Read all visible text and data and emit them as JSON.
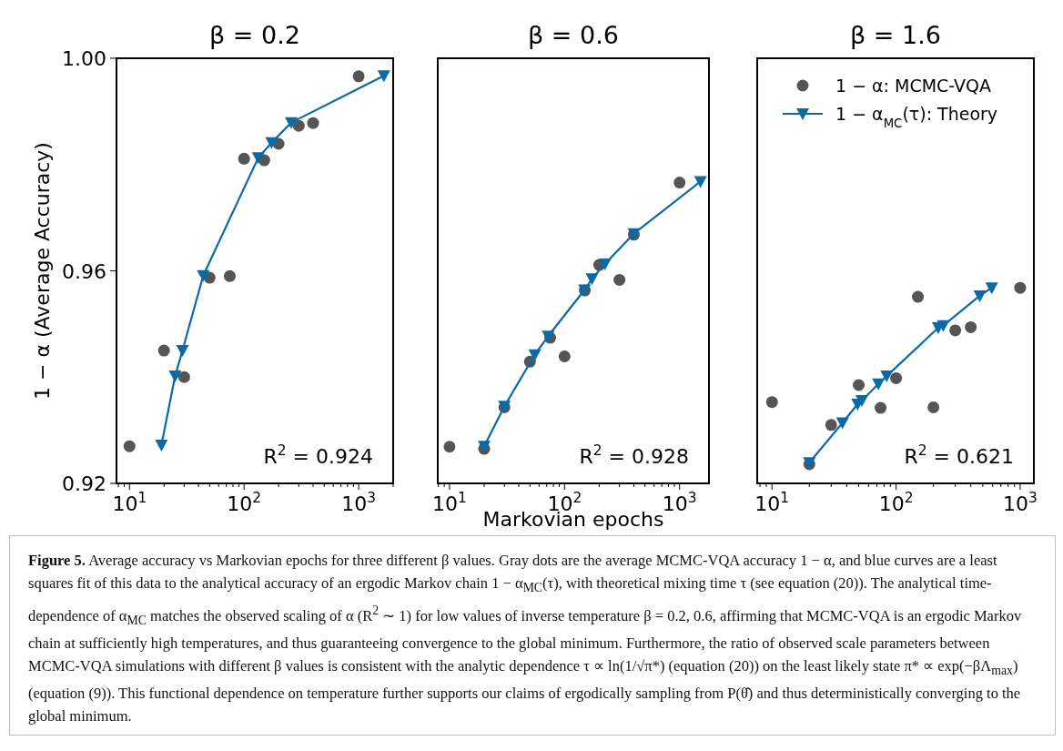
{
  "chart_data": [
    {
      "type": "scatter",
      "title": "β = 0.2",
      "ylabel": "1 − α  (Average Accuracy)",
      "log": "x",
      "xlim": [
        7.7,
        2000
      ],
      "ylim": [
        0.92,
        1.0
      ],
      "xticks": [
        {
          "value": 8,
          "label": null
        },
        {
          "value": 9,
          "label": null
        },
        {
          "value": 10,
          "label": "10$^{1}$"
        },
        {
          "value": 20,
          "label": null
        },
        {
          "value": 30,
          "label": null
        },
        {
          "value": 40,
          "label": null
        },
        {
          "value": 50,
          "label": null
        },
        {
          "value": 60,
          "label": null
        },
        {
          "value": 70,
          "label": null
        },
        {
          "value": 80,
          "label": null
        },
        {
          "value": 90,
          "label": null
        },
        {
          "value": 100,
          "label": "10$^{2}$"
        },
        {
          "value": 200,
          "label": null
        },
        {
          "value": 300,
          "label": null
        },
        {
          "value": 400,
          "label": null
        },
        {
          "value": 500,
          "label": null
        },
        {
          "value": 600,
          "label": null
        },
        {
          "value": 700,
          "label": null
        },
        {
          "value": 800,
          "label": null
        },
        {
          "value": 900,
          "label": null
        },
        {
          "value": 1000,
          "label": "10$^{3}$"
        },
        {
          "value": 2000,
          "label": null
        }
      ],
      "yticks": [
        0.92,
        0.96,
        {
          "value": 1.0,
          "label": "1.00"
        }
      ],
      "series": [
        {
          "marker": "circle",
          "color": "#555555",
          "x": [
            10,
            20,
            30,
            50,
            75,
            100,
            150,
            200,
            300,
            400,
            1000
          ],
          "values": [
            0.927,
            0.945,
            0.94,
            0.9587,
            0.959,
            0.9811,
            0.9808,
            0.9839,
            0.9873,
            0.9878,
            0.9966
          ]
        },
        {
          "type": "line",
          "marker": "triangle",
          "color": "#0b6aa6",
          "x": [
            19,
            25,
            29,
            44,
            133,
            174,
            258,
            1660
          ],
          "values": [
            0.9272,
            0.9402,
            0.945,
            0.9591,
            0.9813,
            0.9841,
            0.9879,
            0.9967
          ]
        }
      ],
      "annotations": [
        "R$^{2}$ = 0.924",
        "Figure 5. Average accuracy vs Markovian epochs for three different β values. Gray dots are the average MCMC-VQA accuracy 1 − α, and blue curves are a least squares fit of this data to the analytical accuracy of an ergodic Markov chain 1 − α$_{MC}$(τ), with theoretical mixing time τ (see equation (20)). The analytical time-dependence of α$_{MC}$ matches the observed scaling of α (R$^{2}$ ∼ 1) for low values of inverse temperature β = 0.2, 0.6, affirming that MCMC-VQA is an ergodic Markov chain at sufficiently high temperatures, and thus guaranteeing convergence to the global minimum. Furthermore, the ratio of observed scale parameters between MCMC-VQA simulations with different β values is consistent with the analytic dependence τ ∝ ln(1/√π*) (equation (20)) on the least likely state π* ∝ exp(−βΛ$_{max}$) (equation (9)). This functional dependence on temperature further supports our claims of ergodically sampling from P(θ̂) and thus deterministically converging to the global minimum."
      ]
    },
    {
      "type": "scatter",
      "title": "β = 0.6",
      "xlabel": "Markovian epochs",
      "log": "x",
      "xlim": [
        7.9,
        1800
      ],
      "ylim": [
        0.92,
        1.0
      ],
      "tick_labels": "x",
      "xticks": [
        {
          "value": 8,
          "label": null
        },
        {
          "value": 9,
          "label": null
        },
        {
          "value": 10,
          "label": "10$^{1}$"
        },
        {
          "value": 20,
          "label": null
        },
        {
          "value": 30,
          "label": null
        },
        {
          "value": 40,
          "label": null
        },
        {
          "value": 50,
          "label": null
        },
        {
          "value": 60,
          "label": null
        },
        {
          "value": 70,
          "label": null
        },
        {
          "value": 80,
          "label": null
        },
        {
          "value": 90,
          "label": null
        },
        {
          "value": 100,
          "label": "10$^{2}$"
        },
        {
          "value": 200,
          "label": null
        },
        {
          "value": 300,
          "label": null
        },
        {
          "value": 400,
          "label": null
        },
        {
          "value": 500,
          "label": null
        },
        {
          "value": 600,
          "label": null
        },
        {
          "value": 700,
          "label": null
        },
        {
          "value": 800,
          "label": null
        },
        {
          "value": 900,
          "label": null
        },
        {
          "value": 1000,
          "label": "10$^{3}$"
        }
      ],
      "series": [
        {
          "marker": "circle",
          "color": "#555555",
          "x": [
            10,
            20,
            30,
            50,
            75,
            100,
            150,
            200,
            300,
            400,
            1000
          ],
          "values": [
            0.9269,
            0.9265,
            0.9343,
            0.9429,
            0.9474,
            0.9439,
            0.9563,
            0.9611,
            0.9583,
            0.9668,
            0.9766
          ]
        },
        {
          "type": "line",
          "marker": "triangle",
          "color": "#0b6aa6",
          "x": [
            20,
            30,
            55,
            72,
            149,
            173,
            224,
            400,
            1520
          ],
          "values": [
            0.927,
            0.9345,
            0.9442,
            0.9477,
            0.9564,
            0.9585,
            0.9613,
            0.967,
            0.9768
          ]
        }
      ],
      "annotations": [
        "R$^{2}$ = 0.928"
      ]
    },
    {
      "type": "scatter",
      "title": "β = 1.6",
      "log": "x",
      "xlim": [
        7.6,
        1290
      ],
      "ylim": [
        0.92,
        1.0
      ],
      "tick_labels": "x",
      "legend": "top right",
      "xticks": [
        {
          "value": 8,
          "label": null
        },
        {
          "value": 9,
          "label": null
        },
        {
          "value": 10,
          "label": "10$^{1}$"
        },
        {
          "value": 20,
          "label": null
        },
        {
          "value": 30,
          "label": null
        },
        {
          "value": 40,
          "label": null
        },
        {
          "value": 50,
          "label": null
        },
        {
          "value": 60,
          "label": null
        },
        {
          "value": 70,
          "label": null
        },
        {
          "value": 80,
          "label": null
        },
        {
          "value": 90,
          "label": null
        },
        {
          "value": 100,
          "label": "10$^{2}$"
        },
        {
          "value": 200,
          "label": null
        },
        {
          "value": 300,
          "label": null
        },
        {
          "value": 400,
          "label": null
        },
        {
          "value": 500,
          "label": null
        },
        {
          "value": 600,
          "label": null
        },
        {
          "value": 700,
          "label": null
        },
        {
          "value": 800,
          "label": null
        },
        {
          "value": 900,
          "label": null
        },
        {
          "value": 1000,
          "label": "10$^{3}$"
        }
      ],
      "series": [
        {
          "name": "1 − α:  MCMC-VQA",
          "marker": "circle",
          "color": "#555555",
          "x": [
            10,
            20,
            30,
            50,
            75,
            100,
            150,
            200,
            300,
            400,
            1000
          ],
          "values": [
            0.9353,
            0.9236,
            0.931,
            0.9385,
            0.9342,
            0.9398,
            0.9551,
            0.9343,
            0.9488,
            0.9494,
            0.9568
          ]
        },
        {
          "name": "1 − α$_{MC}$(τ):  Theory",
          "type": "line",
          "marker": "triangle",
          "color": "#0b6aa6",
          "x": [
            20,
            37,
            49,
            53,
            72,
            84,
            219,
            240,
            473,
            590
          ],
          "values": [
            0.9239,
            0.9314,
            0.9349,
            0.9356,
            0.9387,
            0.9402,
            0.9493,
            0.9497,
            0.9553,
            0.9568
          ]
        }
      ],
      "annotations": [
        "R$^{2}$ = 0.621"
      ]
    }
  ]
}
